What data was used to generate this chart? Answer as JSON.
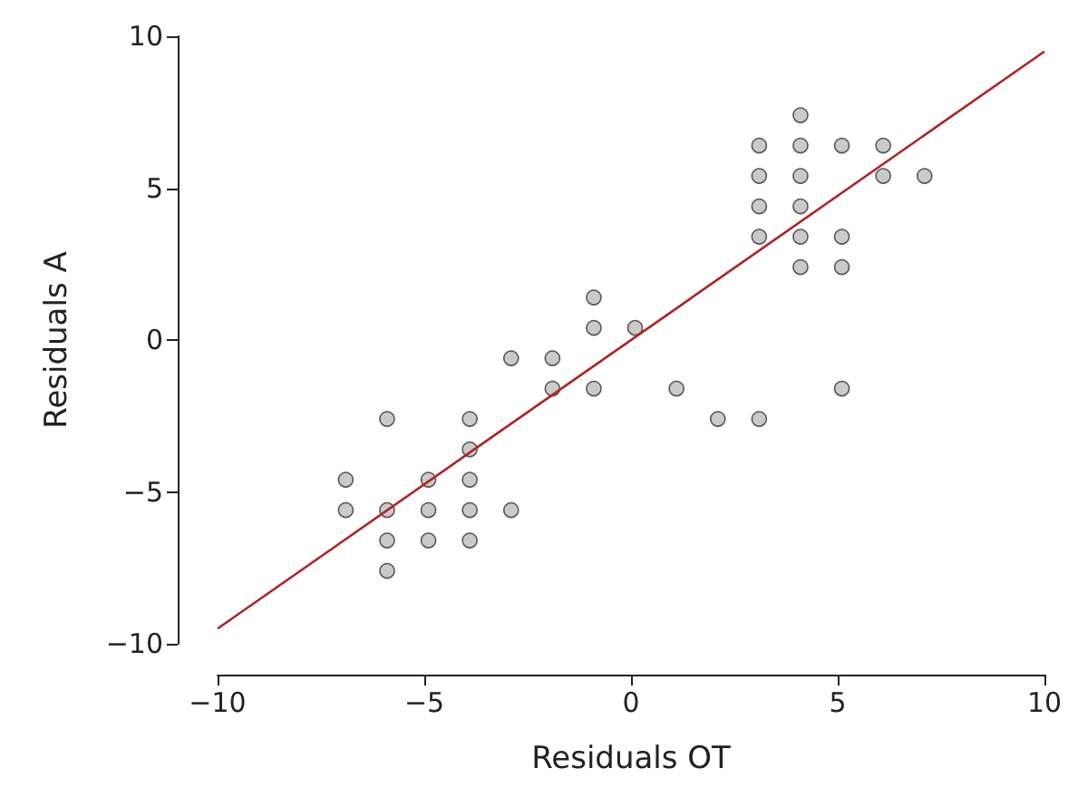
{
  "chart_data": {
    "type": "scatter",
    "xlabel": "Residuals OT",
    "ylabel": "Residuals A",
    "xlim": [
      -10,
      10
    ],
    "ylim": [
      -10,
      10
    ],
    "xticks": [
      -10,
      -5,
      0,
      5,
      10
    ],
    "yticks": [
      -10,
      -5,
      0,
      5,
      10
    ],
    "grid": false,
    "marker": "circle",
    "series": [
      {
        "color": "#bdbdbd",
        "x": [
          -6.9,
          -6.9,
          -5.9,
          -5.9,
          -5.9,
          -5.9,
          -4.9,
          -4.9,
          -4.9,
          -3.9,
          -3.9,
          -3.9,
          -3.9,
          -3.9,
          -2.9,
          -2.9,
          -1.9,
          -1.9,
          -0.9,
          -0.9,
          -0.9,
          0.1,
          1.1,
          2.1,
          3.1,
          3.1,
          3.1,
          3.1,
          3.1,
          4.1,
          4.1,
          4.1,
          4.1,
          4.1,
          4.1,
          5.1,
          5.1,
          5.1,
          5.1,
          6.1,
          6.1,
          7.1
        ],
        "values": [
          -4.6,
          -5.6,
          -2.6,
          -5.6,
          -6.6,
          -7.6,
          -4.6,
          -5.6,
          -6.6,
          -2.6,
          -3.6,
          -4.6,
          -5.6,
          -6.6,
          -0.6,
          -5.6,
          -0.6,
          -1.6,
          1.4,
          0.4,
          -1.6,
          0.4,
          -1.6,
          -2.6,
          6.4,
          5.4,
          4.4,
          3.4,
          -2.6,
          7.4,
          6.4,
          5.4,
          4.4,
          3.4,
          2.4,
          6.4,
          3.4,
          2.4,
          -1.6,
          6.4,
          5.4,
          5.4
        ]
      },
      {
        "type": "line",
        "color": "#b22222",
        "marker": "none",
        "line_style": "solid",
        "x": [
          -10,
          10
        ],
        "values": [
          -9.5,
          9.5
        ]
      }
    ]
  }
}
